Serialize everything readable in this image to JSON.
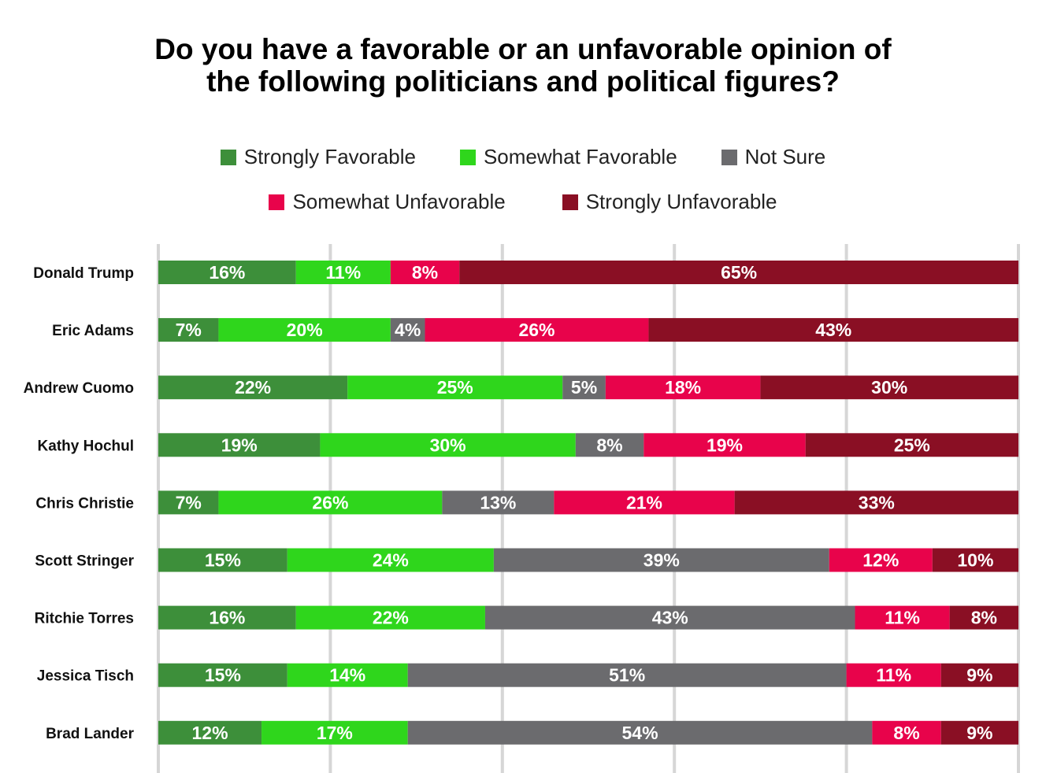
{
  "chart_data": {
    "type": "bar",
    "orientation": "horizontal",
    "stacked": true,
    "title": "Do you have a favorable or an unfavorable opinion of the following politicians and political figures?",
    "title_lines": [
      "Do you have a favorable or an unfavorable opinion of",
      "the following politicians and political figures?"
    ],
    "xlim": [
      0,
      100
    ],
    "grid": true,
    "legend_position": "top",
    "categories": [
      "Donald Trump",
      "Eric Adams",
      "Andrew Cuomo",
      "Kathy Hochul",
      "Chris Christie",
      "Scott Stringer",
      "Ritchie Torres",
      "Jessica Tisch",
      "Brad Lander"
    ],
    "series": [
      {
        "name": "Strongly Favorable",
        "color": "#3d8f3a",
        "values": [
          16,
          7,
          22,
          19,
          7,
          15,
          16,
          15,
          12
        ]
      },
      {
        "name": "Somewhat Favorable",
        "color": "#2fd61c",
        "values": [
          11,
          20,
          25,
          30,
          26,
          24,
          22,
          14,
          17
        ]
      },
      {
        "name": "Not Sure",
        "color": "#6b6b6e",
        "values": [
          0,
          4,
          5,
          8,
          13,
          39,
          43,
          51,
          54
        ]
      },
      {
        "name": "Somewhat Unfavorable",
        "color": "#e8034b",
        "values": [
          8,
          26,
          18,
          19,
          21,
          12,
          11,
          11,
          8
        ]
      },
      {
        "name": "Strongly Unfavorable",
        "color": "#8a0f24",
        "values": [
          65,
          43,
          30,
          25,
          33,
          10,
          8,
          9,
          9
        ]
      }
    ]
  }
}
